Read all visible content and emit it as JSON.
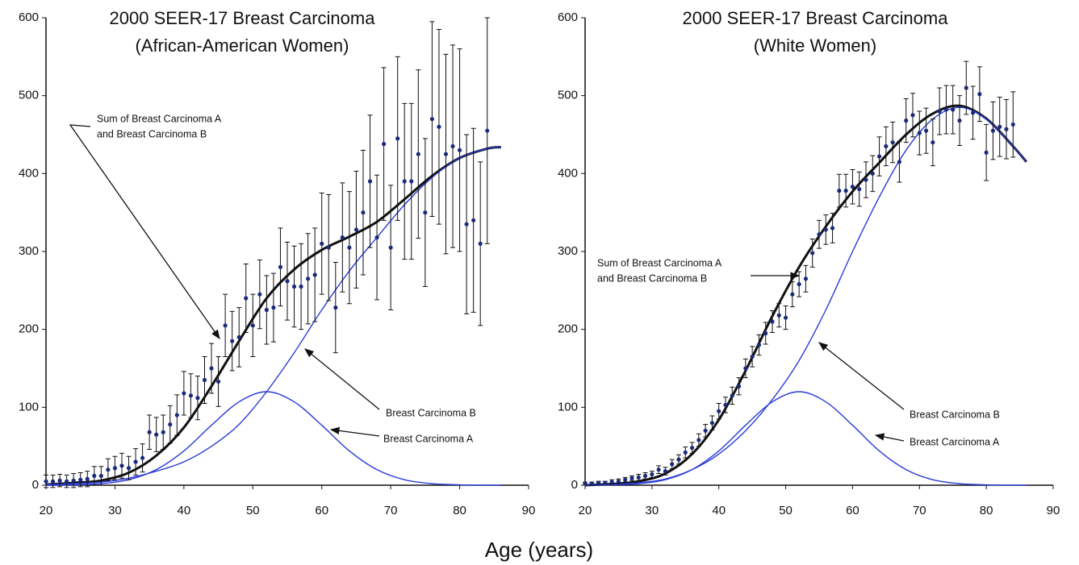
{
  "xlabel": "Age (years)",
  "chart_data": [
    {
      "type": "scatter",
      "title": [
        "2000 SEER-17 Breast Carcinoma",
        "(African-American Women)"
      ],
      "xlim": [
        20,
        90
      ],
      "xticks": [
        20,
        30,
        40,
        50,
        60,
        70,
        80,
        90
      ],
      "ylim": [
        0,
        600
      ],
      "yticks": [
        0,
        100,
        200,
        300,
        400,
        500,
        600
      ],
      "annotations": [
        [
          "Sum of Breast Carcinoma A",
          "and Breast Carcinoma B"
        ],
        [
          "Breast Carcinoma B"
        ],
        [
          "Breast Carcinoma A"
        ]
      ],
      "series": [
        {
          "mode": "points",
          "color": "#1c2a7a",
          "error_color": "#111",
          "x": [
            20,
            21,
            22,
            23,
            24,
            25,
            26,
            27,
            28,
            29,
            30,
            31,
            32,
            33,
            34,
            35,
            36,
            37,
            38,
            39,
            40,
            41,
            42,
            43,
            44,
            45,
            46,
            47,
            48,
            49,
            50,
            51,
            52,
            53,
            54,
            55,
            56,
            57,
            58,
            59,
            60,
            61,
            62,
            63,
            64,
            65,
            66,
            67,
            68,
            69,
            70,
            71,
            72,
            73,
            74,
            75,
            76,
            77,
            78,
            79,
            80,
            81,
            82,
            83,
            84
          ],
          "values": [
            5,
            5,
            6,
            5,
            6,
            7,
            8,
            12,
            12,
            20,
            22,
            25,
            22,
            30,
            35,
            68,
            65,
            68,
            78,
            90,
            118,
            115,
            112,
            135,
            150,
            133,
            205,
            185,
            190,
            240,
            205,
            245,
            225,
            228,
            280,
            262,
            255,
            255,
            265,
            270,
            310,
            305,
            228,
            318,
            305,
            328,
            350,
            390,
            318,
            438,
            305,
            445,
            390,
            390,
            425,
            350,
            470,
            460,
            425,
            435,
            430,
            335,
            340,
            310,
            455
          ],
          "errors": [
            8,
            8,
            8,
            8,
            9,
            9,
            10,
            12,
            12,
            14,
            15,
            16,
            15,
            17,
            18,
            22,
            22,
            22,
            24,
            26,
            28,
            28,
            28,
            30,
            32,
            32,
            40,
            38,
            38,
            44,
            40,
            44,
            44,
            44,
            50,
            50,
            52,
            55,
            58,
            60,
            65,
            68,
            58,
            70,
            72,
            75,
            80,
            85,
            80,
            98,
            80,
            105,
            100,
            100,
            108,
            95,
            125,
            125,
            128,
            130,
            130,
            115,
            118,
            105,
            145
          ]
        },
        {
          "mode": "line",
          "color": "#111",
          "width": 3,
          "x": [
            20,
            24,
            28,
            32,
            36,
            40,
            44,
            48,
            52,
            56,
            60,
            64,
            68,
            72,
            76,
            80,
            84,
            86
          ],
          "values": [
            1,
            3,
            6,
            16,
            38,
            74,
            127,
            185,
            240,
            277,
            302,
            319,
            338,
            367,
            397,
            420,
            432,
            434
          ]
        },
        {
          "mode": "line",
          "color": "#2a3bd8",
          "width": 1.4,
          "x": [
            20,
            24,
            28,
            32,
            36,
            40,
            44,
            48,
            52,
            56,
            60,
            64,
            68,
            72,
            76,
            80,
            84,
            86
          ],
          "values": [
            1,
            2,
            4,
            9,
            18,
            30,
            50,
            78,
            120,
            170,
            225,
            275,
            318,
            360,
            395,
            420,
            432,
            434
          ]
        },
        {
          "mode": "line",
          "color": "#2a3bd8",
          "width": 1.4,
          "x": [
            20,
            24,
            28,
            32,
            36,
            40,
            44,
            48,
            52,
            56,
            60,
            64,
            68,
            72,
            76,
            80,
            84,
            86
          ],
          "values": [
            0,
            0.5,
            2,
            7,
            20,
            44,
            77,
            107,
            120,
            107,
            77,
            44,
            20,
            7,
            2,
            0.5,
            0,
            0
          ]
        }
      ]
    },
    {
      "type": "scatter",
      "title": [
        "2000 SEER-17 Breast Carcinoma",
        "(White Women)"
      ],
      "xlim": [
        20,
        90
      ],
      "xticks": [
        20,
        30,
        40,
        50,
        60,
        70,
        80,
        90
      ],
      "ylim": [
        0,
        600
      ],
      "yticks": [
        0,
        100,
        200,
        300,
        400,
        500,
        600
      ],
      "annotations": [
        [
          "Sum of Breast Carcinoma A",
          "and Breast Carcinoma B"
        ],
        [
          "Breast Carcinoma B"
        ],
        [
          "Breast Carcinoma A"
        ]
      ],
      "series": [
        {
          "mode": "points",
          "color": "#1c2a7a",
          "error_color": "#111",
          "x": [
            20,
            21,
            22,
            23,
            24,
            25,
            26,
            27,
            28,
            29,
            30,
            31,
            32,
            33,
            34,
            35,
            36,
            37,
            38,
            39,
            40,
            41,
            42,
            43,
            44,
            45,
            46,
            47,
            48,
            49,
            50,
            51,
            52,
            53,
            54,
            55,
            56,
            57,
            58,
            59,
            60,
            61,
            62,
            63,
            64,
            65,
            66,
            67,
            68,
            69,
            70,
            71,
            72,
            73,
            74,
            75,
            76,
            77,
            78,
            79,
            80,
            81,
            82,
            83,
            84
          ],
          "values": [
            2,
            2,
            3,
            3,
            4,
            5,
            7,
            9,
            10,
            12,
            14,
            20,
            18,
            27,
            33,
            42,
            48,
            58,
            70,
            80,
            95,
            103,
            115,
            127,
            150,
            165,
            180,
            195,
            210,
            218,
            215,
            245,
            258,
            265,
            298,
            322,
            328,
            330,
            378,
            378,
            383,
            380,
            392,
            400,
            422,
            435,
            440,
            415,
            468,
            475,
            452,
            455,
            440,
            480,
            482,
            482,
            468,
            510,
            478,
            502,
            427,
            455,
            460,
            457,
            463
          ],
          "errors": [
            2,
            2,
            2,
            2,
            3,
            3,
            3,
            3,
            4,
            4,
            4,
            5,
            5,
            6,
            6,
            7,
            7,
            8,
            8,
            9,
            10,
            10,
            11,
            11,
            12,
            13,
            13,
            14,
            14,
            15,
            15,
            16,
            16,
            17,
            18,
            18,
            19,
            19,
            21,
            21,
            22,
            22,
            23,
            23,
            25,
            25,
            26,
            26,
            28,
            28,
            28,
            29,
            30,
            30,
            31,
            31,
            32,
            34,
            34,
            35,
            36,
            37,
            38,
            38,
            42
          ]
        },
        {
          "mode": "line",
          "color": "#111",
          "width": 3,
          "x": [
            20,
            24,
            28,
            32,
            36,
            40,
            44,
            48,
            52,
            56,
            60,
            64,
            68,
            72,
            76,
            80,
            84,
            86
          ],
          "values": [
            0,
            1.5,
            5,
            15,
            40,
            84,
            147,
            217,
            280,
            332,
            377,
            414,
            450,
            477,
            487,
            470.5,
            435,
            415
          ]
        },
        {
          "mode": "line",
          "color": "#2a3bd8",
          "width": 1.4,
          "x": [
            20,
            24,
            28,
            32,
            36,
            40,
            44,
            48,
            52,
            56,
            60,
            64,
            68,
            72,
            76,
            80,
            84,
            86
          ],
          "values": [
            0,
            1,
            3,
            8,
            20,
            40,
            70,
            110,
            160,
            225,
            300,
            370,
            430,
            470,
            485,
            470,
            435,
            415
          ]
        },
        {
          "mode": "line",
          "color": "#2a3bd8",
          "width": 1.4,
          "x": [
            20,
            24,
            28,
            32,
            36,
            40,
            44,
            48,
            52,
            56,
            60,
            64,
            68,
            72,
            76,
            80,
            84,
            86
          ],
          "values": [
            0,
            0.5,
            2,
            7,
            20,
            44,
            77,
            107,
            120,
            107,
            77,
            44,
            20,
            7,
            2,
            0.5,
            0,
            0
          ]
        }
      ]
    }
  ]
}
